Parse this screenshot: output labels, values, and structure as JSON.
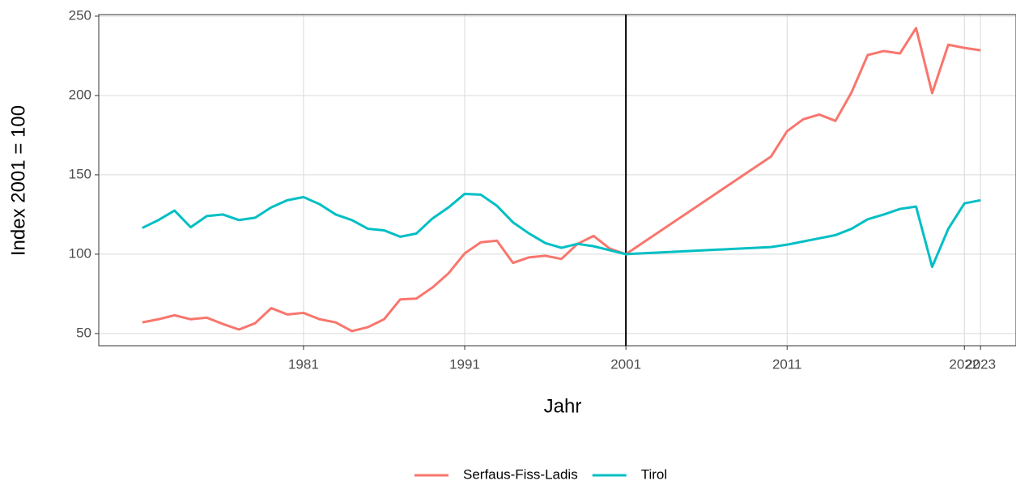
{
  "chart_data": {
    "type": "line",
    "x_label": "Jahr",
    "y_label": "Index 2001 = 100",
    "x": [
      1971,
      1972,
      1973,
      1974,
      1975,
      1976,
      1977,
      1978,
      1979,
      1980,
      1981,
      1982,
      1983,
      1984,
      1985,
      1986,
      1987,
      1988,
      1989,
      1990,
      1991,
      1992,
      1993,
      1994,
      1995,
      1996,
      1997,
      1998,
      1999,
      2000,
      2001,
      2010,
      2011,
      2012,
      2013,
      2014,
      2015,
      2016,
      2017,
      2018,
      2019,
      2020,
      2021,
      2022,
      2023
    ],
    "series": [
      {
        "name": "Serfaus-Fiss-Ladis",
        "color": "#F8766D",
        "values": [
          57,
          59,
          61.5,
          59,
          60,
          56,
          52.5,
          56.5,
          66,
          62,
          63,
          59,
          57,
          51.5,
          54,
          59,
          71.5,
          72,
          79,
          88,
          100.5,
          107.5,
          108.5,
          94.5,
          98,
          99,
          97,
          106.5,
          111.5,
          103.5,
          100,
          161.5,
          177.5,
          185,
          188,
          184,
          202,
          225.5,
          228,
          226.5,
          242.5,
          201.5,
          232,
          230,
          228.5
        ]
      },
      {
        "name": "Tirol",
        "color": "#00BFC4",
        "values": [
          116.5,
          121.5,
          127.5,
          117,
          124,
          125,
          121.5,
          123,
          129.5,
          134,
          136,
          131.5,
          125,
          121.5,
          116,
          115,
          111,
          113,
          122.5,
          129.5,
          138,
          137.5,
          130.5,
          120,
          113,
          107,
          104,
          106.5,
          105,
          102.5,
          100,
          104.5,
          106,
          108,
          110,
          112,
          116,
          122,
          125,
          128.5,
          130,
          92,
          116,
          132,
          134
        ]
      }
    ],
    "xlim": [
      1968.3,
      2025.2
    ],
    "ylim": [
      42.3,
      251
    ],
    "xticks": [
      1981,
      1991,
      2001,
      2011,
      2022,
      2023
    ],
    "yticks": [
      50,
      100,
      150,
      200,
      250
    ],
    "vline": 2001,
    "grid": true,
    "legend": "bottom"
  }
}
